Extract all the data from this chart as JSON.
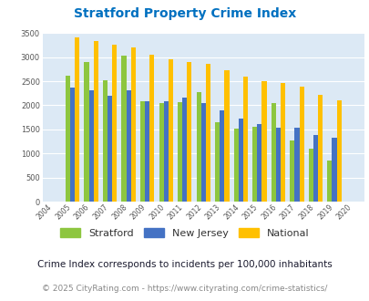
{
  "title": "Stratford Property Crime Index",
  "years": [
    2004,
    2005,
    2006,
    2007,
    2008,
    2009,
    2010,
    2011,
    2012,
    2013,
    2014,
    2015,
    2016,
    2017,
    2018,
    2019,
    2020
  ],
  "stratford": [
    null,
    2620,
    2900,
    2530,
    3040,
    2080,
    2050,
    2060,
    2270,
    1650,
    1520,
    1560,
    2040,
    1280,
    1100,
    860,
    null
  ],
  "new_jersey": [
    null,
    2360,
    2310,
    2200,
    2310,
    2080,
    2080,
    2160,
    2050,
    1900,
    1720,
    1610,
    1540,
    1540,
    1390,
    1320,
    null
  ],
  "national": [
    null,
    3420,
    3340,
    3260,
    3200,
    3050,
    2960,
    2900,
    2860,
    2730,
    2600,
    2500,
    2470,
    2380,
    2210,
    2110,
    null
  ],
  "stratford_color": "#8dc63f",
  "nj_color": "#4472c4",
  "national_color": "#ffc000",
  "plot_bg": "#dce9f5",
  "ylim": [
    0,
    3500
  ],
  "yticks": [
    0,
    500,
    1000,
    1500,
    2000,
    2500,
    3000,
    3500
  ],
  "subtitle": "Crime Index corresponds to incidents per 100,000 inhabitants",
  "footer": "© 2025 CityRating.com - https://www.cityrating.com/crime-statistics/",
  "legend_labels": [
    "Stratford",
    "New Jersey",
    "National"
  ],
  "title_color": "#0070c0",
  "subtitle_color": "#1a1a2e",
  "footer_color": "#888888",
  "footer_link_color": "#0070c0",
  "bar_width": 0.25
}
